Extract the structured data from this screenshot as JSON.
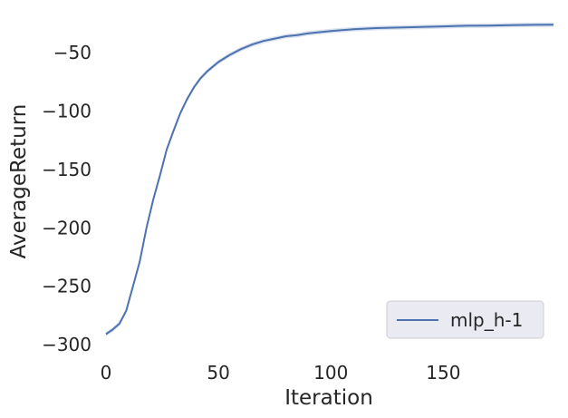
{
  "chart_data": {
    "type": "line",
    "title": "",
    "xlabel": "Iteration",
    "ylabel": "AverageReturn",
    "xlim": [
      0,
      199
    ],
    "ylim": [
      -310,
      -22
    ],
    "xticks": [
      0,
      50,
      100,
      150
    ],
    "yticks": [
      -300,
      -250,
      -200,
      -150,
      -100,
      -50
    ],
    "grid": false,
    "legend_position": "lower-right",
    "series": [
      {
        "name": "mlp_h-1",
        "color": "#4c72b0",
        "x": [
          0,
          3,
          6,
          9,
          12,
          15,
          18,
          21,
          24,
          27,
          30,
          33,
          36,
          39,
          42,
          45,
          50,
          55,
          60,
          65,
          70,
          75,
          80,
          85,
          90,
          95,
          100,
          110,
          120,
          130,
          140,
          150,
          160,
          170,
          180,
          190,
          199
        ],
        "y": [
          -291,
          -287,
          -282,
          -271,
          -250,
          -229,
          -200,
          -176,
          -155,
          -133,
          -117,
          -102,
          -90,
          -80,
          -72,
          -66,
          -58,
          -52,
          -47,
          -43,
          -40,
          -38,
          -36,
          -35,
          -33.5,
          -32.5,
          -31.5,
          -30,
          -29,
          -28.5,
          -28,
          -27.5,
          -27,
          -26.8,
          -26.5,
          -26.2,
          -26
        ]
      }
    ]
  }
}
